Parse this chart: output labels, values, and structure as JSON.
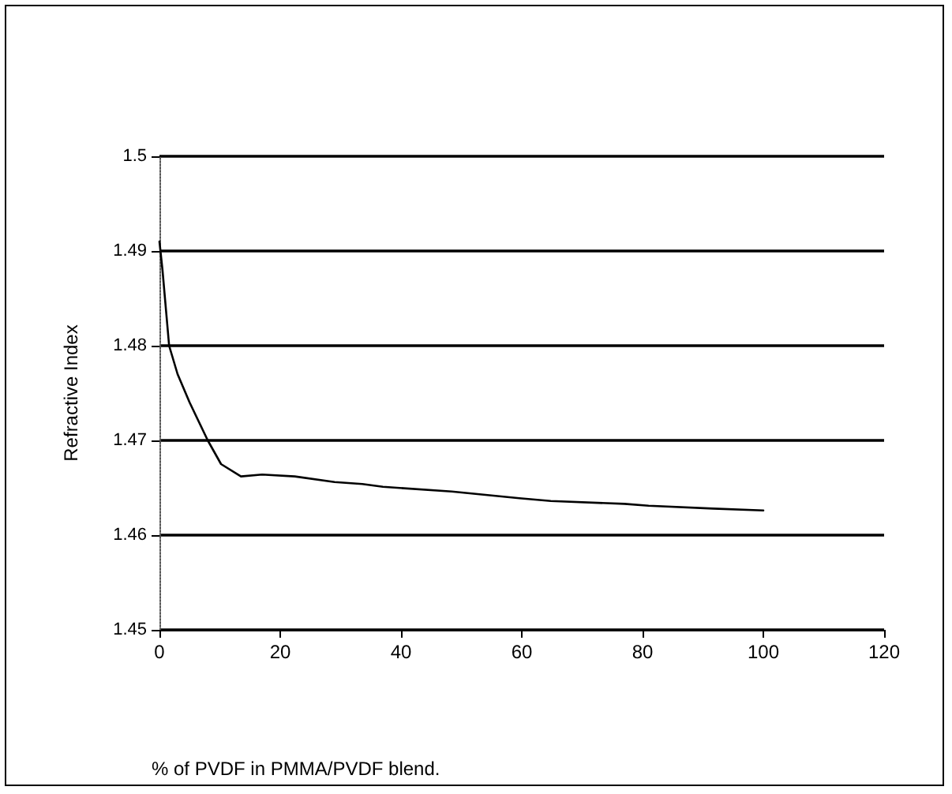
{
  "chart_data": {
    "type": "line",
    "xlabel": "% of PVDF in PMMA/PVDF blend.",
    "ylabel": "Refractive Index",
    "x": [
      0,
      0.5,
      1.6,
      3,
      5,
      8,
      10.2,
      13.5,
      17,
      22.4,
      29,
      33.6,
      37,
      48.4,
      59.6,
      64.8,
      77,
      81,
      91.7,
      100
    ],
    "series": [
      {
        "color": "#000000",
        "values": [
          1.491,
          1.488,
          1.48,
          1.477,
          1.474,
          1.47,
          1.4675,
          1.4662,
          1.4664,
          1.4662,
          1.4656,
          1.4654,
          1.4651,
          1.4646,
          1.4639,
          1.4636,
          1.4633,
          1.4631,
          1.4628,
          1.4626
        ]
      }
    ],
    "xlim": [
      0,
      120
    ],
    "xticks": [
      0,
      20,
      40,
      60,
      80,
      100,
      120
    ],
    "ylim": [
      1.45,
      1.5
    ],
    "yticks": [
      1.45,
      1.46,
      1.47,
      1.48,
      1.49,
      1.5
    ],
    "grid": "y",
    "marker": "none",
    "line_style": "solid"
  }
}
